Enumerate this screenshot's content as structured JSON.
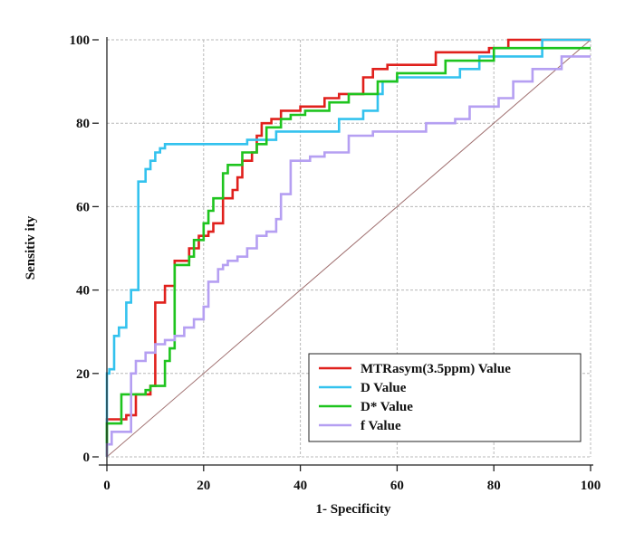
{
  "chart_data": {
    "type": "line",
    "title": "",
    "xlabel": "1- Specificity",
    "ylabel": "Sensitiv ity",
    "xlim": [
      0,
      100
    ],
    "ylim": [
      0,
      100
    ],
    "xticks": [
      "0",
      "20",
      "40",
      "60",
      "80",
      "100"
    ],
    "yticks": [
      "0",
      "20",
      "40",
      "60",
      "80",
      "100"
    ],
    "grid": true,
    "legend_position": "bottom-right",
    "reference_line": {
      "name": "reference",
      "color": "#a07070",
      "x": [
        0,
        100
      ],
      "y": [
        0,
        100
      ]
    },
    "series": [
      {
        "name": "MTRasym(3.5ppm) Value",
        "color": "#e0201c",
        "x": [
          0,
          0,
          4,
          4,
          6,
          6,
          9,
          9,
          10,
          10,
          12,
          12,
          14,
          14,
          17,
          17,
          19,
          19,
          21,
          21,
          22,
          22,
          24,
          24,
          26,
          26,
          27,
          27,
          28,
          28,
          30,
          30,
          31,
          31,
          32,
          32,
          34,
          34,
          36,
          36,
          40,
          40,
          45,
          45,
          48,
          48,
          53,
          53,
          55,
          55,
          58,
          58,
          68,
          68,
          79,
          79,
          83,
          83,
          98,
          98,
          100
        ],
        "y": [
          0,
          9,
          9,
          10,
          10,
          15,
          15,
          17,
          17,
          37,
          37,
          41,
          41,
          47,
          47,
          50,
          50,
          53,
          53,
          54,
          54,
          56,
          56,
          62,
          62,
          64,
          64,
          67,
          67,
          71,
          71,
          73,
          73,
          77,
          77,
          80,
          80,
          81,
          81,
          83,
          83,
          84,
          84,
          86,
          86,
          87,
          87,
          91,
          91,
          93,
          93,
          94,
          94,
          97,
          97,
          98,
          98,
          100,
          100,
          100,
          100
        ]
      },
      {
        "name": "D Value",
        "color": "#33c2ee",
        "x": [
          0,
          0,
          0.5,
          0.5,
          1.5,
          1.5,
          2.5,
          2.5,
          4,
          4,
          5,
          5,
          6.5,
          6.5,
          8,
          8,
          9,
          9,
          10,
          10,
          11,
          11,
          12,
          12,
          13,
          13,
          15,
          15,
          29,
          29,
          35,
          35,
          48,
          48,
          53,
          53,
          56,
          56,
          57,
          57,
          60,
          60,
          73,
          73,
          77,
          77,
          90,
          90,
          100
        ],
        "y": [
          0,
          20,
          20,
          21,
          21,
          29,
          29,
          31,
          31,
          37,
          37,
          40,
          40,
          66,
          66,
          69,
          69,
          71,
          71,
          73,
          73,
          74,
          74,
          75,
          75,
          75,
          75,
          75,
          75,
          76,
          76,
          78,
          78,
          81,
          81,
          83,
          83,
          87,
          87,
          90,
          90,
          91,
          91,
          93,
          93,
          96,
          96,
          100,
          100
        ]
      },
      {
        "name": "D* Value",
        "color": "#1ec41e",
        "x": [
          0,
          0,
          3,
          3,
          8,
          8,
          9,
          9,
          12,
          12,
          13,
          13,
          14,
          14,
          17,
          17,
          18,
          18,
          20,
          20,
          21,
          21,
          22,
          22,
          24,
          24,
          25,
          25,
          28,
          28,
          31,
          31,
          33,
          33,
          36,
          36,
          38,
          38,
          41,
          41,
          46,
          46,
          50,
          50,
          56,
          56,
          60,
          60,
          70,
          70,
          80,
          80,
          100
        ],
        "y": [
          0,
          8,
          8,
          15,
          15,
          16,
          16,
          17,
          17,
          23,
          23,
          26,
          26,
          46,
          46,
          48,
          48,
          52,
          52,
          56,
          56,
          59,
          59,
          62,
          62,
          68,
          68,
          70,
          70,
          73,
          73,
          75,
          75,
          79,
          79,
          81,
          81,
          82,
          82,
          83,
          83,
          85,
          85,
          87,
          87,
          90,
          90,
          92,
          92,
          95,
          95,
          98,
          98
        ]
      },
      {
        "name": "f Value",
        "color": "#b59ff2",
        "x": [
          0,
          0,
          1,
          1,
          5,
          5,
          6,
          6,
          8,
          8,
          10,
          10,
          12,
          12,
          14,
          14,
          16,
          16,
          18,
          18,
          20,
          20,
          21,
          21,
          23,
          23,
          24,
          24,
          25,
          25,
          27,
          27,
          29,
          29,
          31,
          31,
          33,
          33,
          35,
          35,
          36,
          36,
          38,
          38,
          42,
          42,
          45,
          45,
          50,
          50,
          55,
          55,
          66,
          66,
          72,
          72,
          75,
          75,
          81,
          81,
          84,
          84,
          88,
          88,
          94,
          94,
          100
        ],
        "y": [
          0,
          3,
          3,
          6,
          6,
          20,
          20,
          23,
          23,
          25,
          25,
          27,
          27,
          28,
          28,
          29,
          29,
          31,
          31,
          33,
          33,
          36,
          36,
          42,
          42,
          45,
          45,
          46,
          46,
          47,
          47,
          48,
          48,
          50,
          50,
          53,
          53,
          54,
          54,
          57,
          57,
          63,
          63,
          71,
          71,
          72,
          72,
          73,
          73,
          77,
          77,
          78,
          78,
          80,
          80,
          81,
          81,
          84,
          84,
          86,
          86,
          90,
          90,
          93,
          93,
          96,
          96
        ]
      }
    ]
  }
}
